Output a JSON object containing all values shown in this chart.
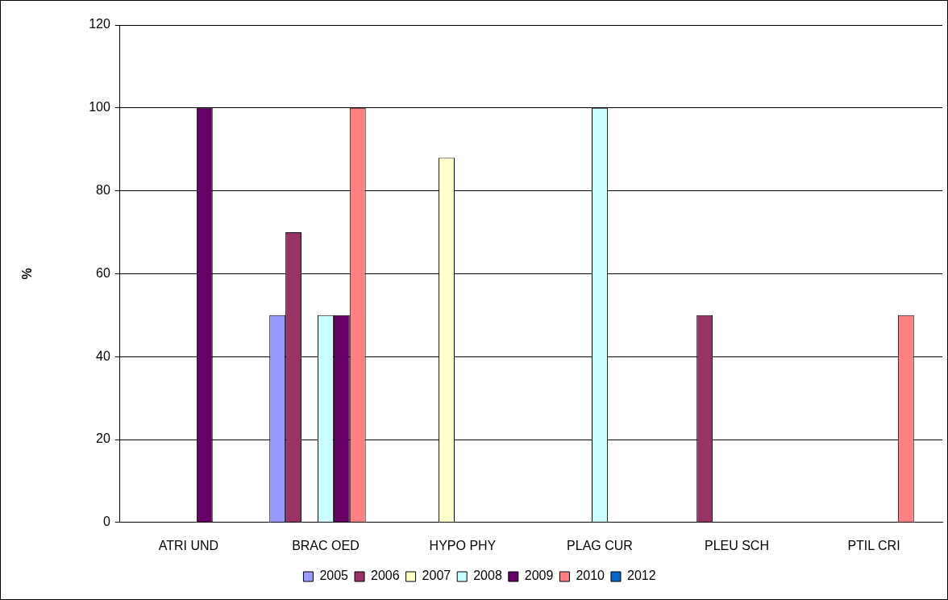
{
  "chart_data": {
    "type": "bar",
    "ylabel": "%",
    "categories": [
      "ATRI UND",
      "BRAC OED",
      "HYPO PHY",
      "PLAG CUR",
      "PLEU SCH",
      "PTIL CRI"
    ],
    "series": [
      {
        "name": "2005",
        "color": "#9999ff",
        "values": [
          null,
          50,
          null,
          null,
          null,
          null
        ]
      },
      {
        "name": "2006",
        "color": "#993366",
        "values": [
          null,
          70,
          null,
          null,
          50,
          null
        ]
      },
      {
        "name": "2007",
        "color": "#ffffcc",
        "values": [
          null,
          null,
          88,
          null,
          null,
          null
        ]
      },
      {
        "name": "2008",
        "color": "#ccffff",
        "values": [
          null,
          50,
          null,
          100,
          null,
          null
        ]
      },
      {
        "name": "2009",
        "color": "#660066",
        "values": [
          100,
          50,
          null,
          null,
          null,
          null
        ]
      },
      {
        "name": "2010",
        "color": "#ff8080",
        "values": [
          null,
          100,
          null,
          null,
          null,
          50
        ]
      },
      {
        "name": "2012",
        "color": "#0066cc",
        "values": [
          null,
          null,
          null,
          null,
          null,
          null
        ]
      }
    ],
    "ylim": [
      0,
      120
    ],
    "yticks": [
      0,
      20,
      40,
      60,
      80,
      100,
      120
    ],
    "grid": "y",
    "legend": "bottom"
  }
}
